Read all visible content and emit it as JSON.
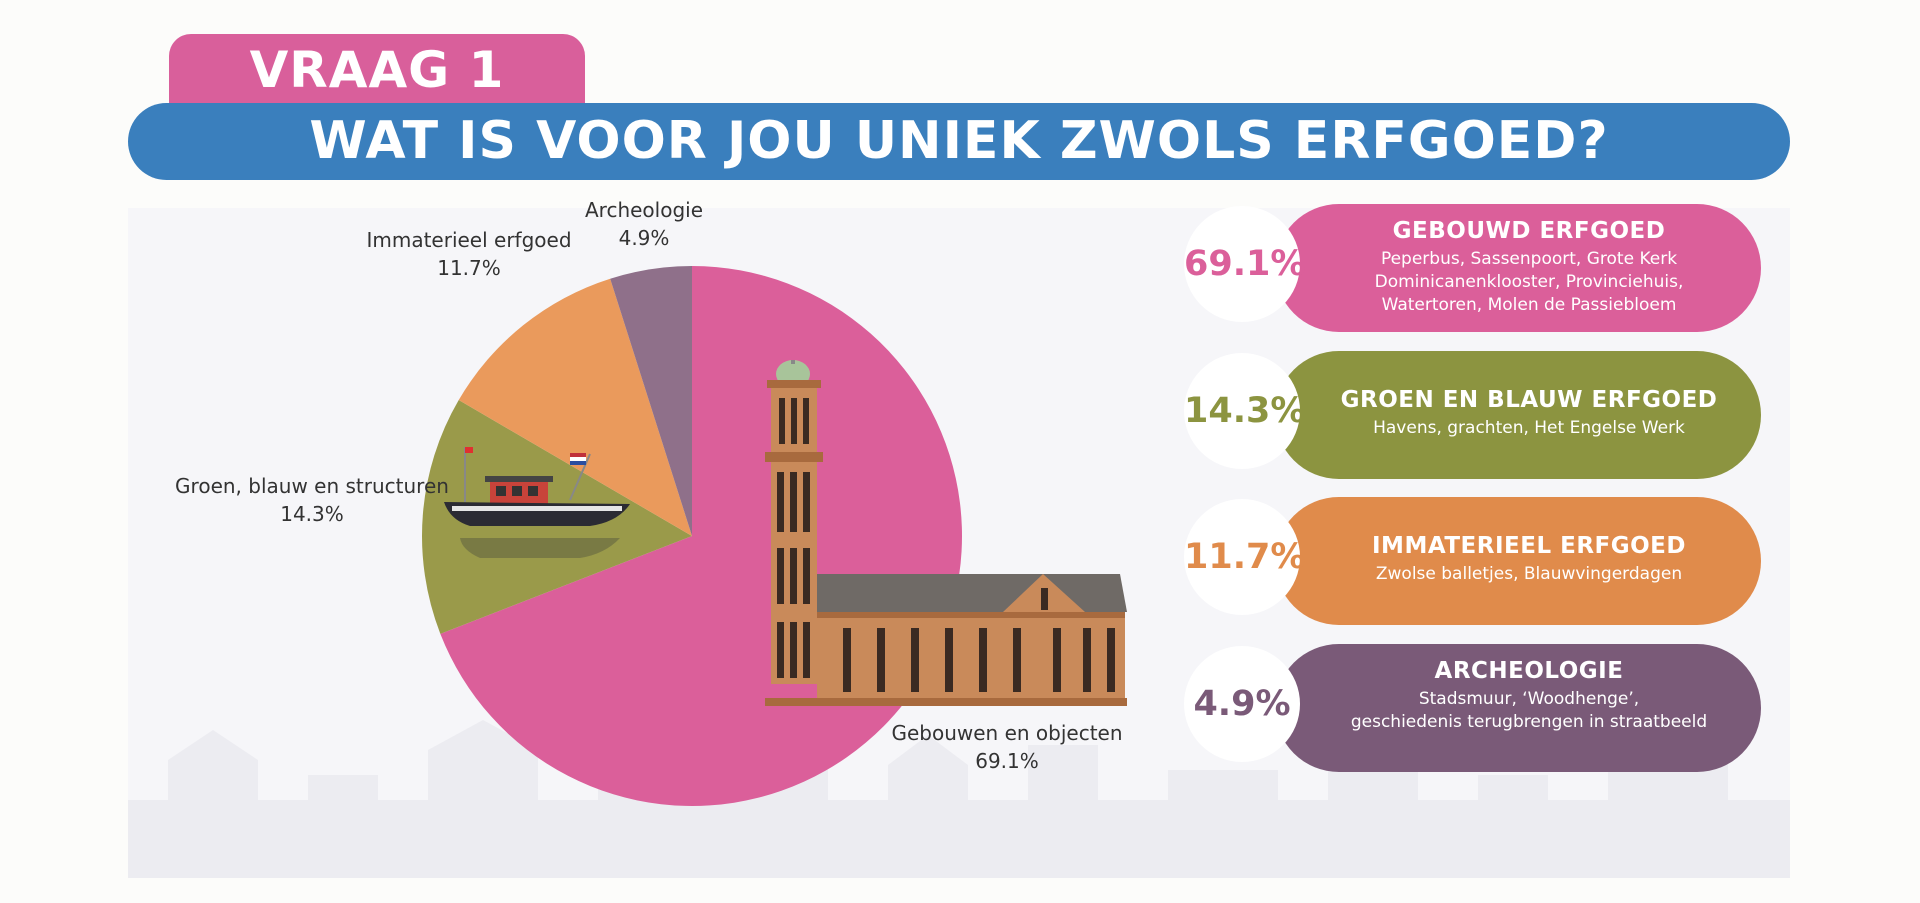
{
  "header": {
    "tab_label": "VRAAG 1",
    "question": "WAT IS VOOR JOU UNIEK ZWOLS ERFGOED?"
  },
  "colors": {
    "tab": "#d95f9b",
    "banner": "#3a7fbd",
    "gebouwd": "#db5f9a",
    "groen": "#8c9440",
    "immaterieel": "#e08b4b",
    "archeologie": "#7a5a78"
  },
  "chart_data": {
    "type": "pie",
    "title": "",
    "slices": [
      {
        "label": "Gebouwen en objecten",
        "value": 69.1,
        "value_label": "69.1%",
        "color": "#db5f9a"
      },
      {
        "label": "Groen, blauw en structuren",
        "value": 14.3,
        "value_label": "14.3%",
        "color": "#9a9a4a"
      },
      {
        "label": "Immaterieel erfgoed",
        "value": 11.7,
        "value_label": "11.7%",
        "color": "#ea9a5c"
      },
      {
        "label": "Archeologie",
        "value": 4.9,
        "value_label": "4.9%",
        "color": "#8f708a"
      }
    ]
  },
  "categories": [
    {
      "percent": "69.1%",
      "title": "GEBOUWD ERFGOED",
      "description": "Peperbus, Sassenpoort, Grote Kerk\nDominicanenklooster, Provinciehuis,\nWatertoren, Molen de Passiebloem",
      "color": "#db5f9a"
    },
    {
      "percent": "14.3%",
      "title": "GROEN EN BLAUW ERFGOED",
      "description": "Havens, grachten, Het Engelse Werk",
      "color": "#8c9440"
    },
    {
      "percent": "11.7%",
      "title": "IMMATERIEEL ERFGOED",
      "description": "Zwolse balletjes, Blauwvingerdagen",
      "color": "#e08b4b"
    },
    {
      "percent": "4.9%",
      "title": "ARCHEOLOGIE",
      "description": "Stadsmuur, ‘Woodhenge’,\ngeschiedenis terugbrengen in straatbeeld",
      "color": "#7a5a78"
    }
  ],
  "illustrations": {
    "church": "church-tower-icon",
    "boat": "boat-icon",
    "skyline": "city-skyline-icon"
  }
}
